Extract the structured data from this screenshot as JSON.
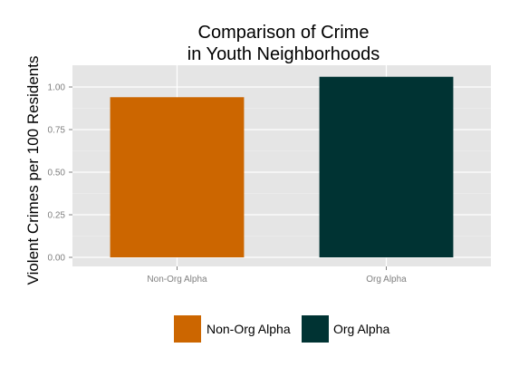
{
  "chart_data": {
    "type": "bar",
    "title_lines": [
      "Comparison of Crime",
      "in Youth Neighborhoods"
    ],
    "xlabel": "",
    "ylabel": "Violent Crimes per 100 Residents",
    "categories": [
      "Non-Org Alpha",
      "Org Alpha"
    ],
    "values": [
      0.94,
      1.06
    ],
    "ylim": [
      0,
      1.1
    ],
    "yticks": [
      0,
      0.25,
      0.5,
      0.75,
      1.0
    ],
    "ytick_labels": [
      "0.00",
      "0.25",
      "0.50",
      "0.75",
      "1.00"
    ],
    "grid": true,
    "legend": {
      "position": "bottom",
      "entries": [
        "Non-Org Alpha",
        "Org Alpha"
      ]
    },
    "colors": {
      "bars": [
        "#cc6600",
        "#003333"
      ],
      "panel_background": "#e5e5e5",
      "grid_major": "#ffffff",
      "grid_minor": "#f2f2f2",
      "tick_text": "#7f7f7f"
    }
  }
}
